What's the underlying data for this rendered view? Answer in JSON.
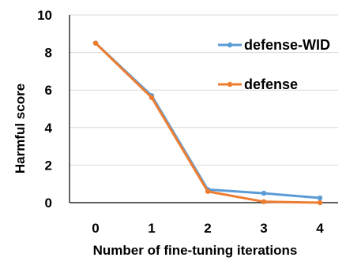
{
  "chart_data": {
    "type": "line",
    "title": "",
    "xlabel": "Number of fine-tuning iterations",
    "ylabel": "Harmful score",
    "categories": [
      "0",
      "1",
      "2",
      "3",
      "4"
    ],
    "x": [
      0,
      1,
      2,
      3,
      4
    ],
    "ylim": [
      0,
      10
    ],
    "yticks": [
      0,
      2,
      4,
      6,
      8,
      10
    ],
    "grid": "horizontal",
    "legend_position": "right",
    "series": [
      {
        "name": "defense-WID",
        "color": "#5B9BD5",
        "values": [
          8.5,
          5.7,
          0.7,
          0.5,
          0.25
        ]
      },
      {
        "name": "defense",
        "color": "#ED7D31",
        "values": [
          8.5,
          5.6,
          0.6,
          0.05,
          0.0
        ]
      }
    ]
  }
}
